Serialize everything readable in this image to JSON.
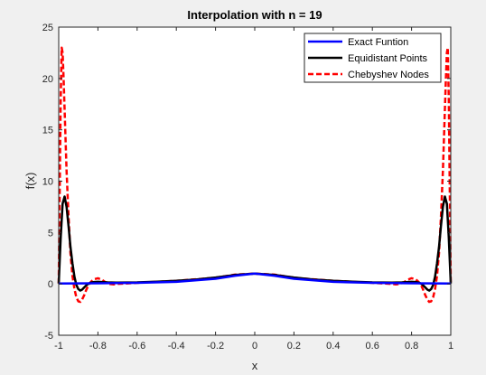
{
  "chart_data": {
    "type": "line",
    "title": "Interpolation with n = 19",
    "xlabel": "x",
    "ylabel": "f(x)",
    "xlim": [
      -1,
      1
    ],
    "ylim": [
      -5,
      25
    ],
    "xticks": [
      "-1",
      "-0.8",
      "-0.6",
      "-0.4",
      "-0.2",
      "0",
      "0.2",
      "0.4",
      "0.6",
      "0.8",
      "1"
    ],
    "yticks": [
      "-5",
      "0",
      "5",
      "10",
      "15",
      "20",
      "25"
    ],
    "grid": false,
    "legend_position": "top-right",
    "series": [
      {
        "name": "Exact Funtion",
        "color": "#0000ff",
        "style": "solid",
        "x": [
          -1,
          -0.8,
          -0.6,
          -0.4,
          -0.2,
          -0.1,
          0,
          0.1,
          0.2,
          0.4,
          0.6,
          0.8,
          1
        ],
        "y": [
          0.04,
          0.06,
          0.1,
          0.2,
          0.5,
          0.8,
          1.0,
          0.8,
          0.5,
          0.2,
          0.1,
          0.06,
          0.04
        ]
      },
      {
        "name": "Equidistant Points",
        "color": "#000000",
        "style": "solid",
        "x": [
          -1.0,
          -0.99,
          -0.98,
          -0.97,
          -0.96,
          -0.95,
          -0.94,
          -0.93,
          -0.92,
          -0.91,
          -0.9,
          -0.89,
          -0.88,
          -0.87,
          -0.86,
          -0.85,
          -0.84,
          -0.83,
          -0.82,
          -0.8,
          -0.75,
          -0.7,
          -0.6,
          -0.5,
          -0.4,
          -0.3,
          -0.2,
          -0.1,
          0,
          0.1,
          0.2,
          0.3,
          0.4,
          0.5,
          0.6,
          0.7,
          0.75,
          0.8,
          0.82,
          0.83,
          0.84,
          0.85,
          0.86,
          0.87,
          0.88,
          0.89,
          0.9,
          0.91,
          0.92,
          0.93,
          0.94,
          0.95,
          0.96,
          0.97,
          0.98,
          0.99,
          1.0
        ],
        "y": [
          0.04,
          4.5,
          7.8,
          8.5,
          7.5,
          5.6,
          3.6,
          2.0,
          0.7,
          -0.1,
          -0.5,
          -0.65,
          -0.55,
          -0.35,
          -0.15,
          0.0,
          0.1,
          0.15,
          0.18,
          0.2,
          0.15,
          0.12,
          0.15,
          0.22,
          0.3,
          0.42,
          0.62,
          0.87,
          1.0,
          0.87,
          0.62,
          0.42,
          0.3,
          0.22,
          0.15,
          0.12,
          0.15,
          0.2,
          0.18,
          0.15,
          0.1,
          0.0,
          -0.15,
          -0.35,
          -0.55,
          -0.65,
          -0.5,
          -0.1,
          0.7,
          2.0,
          3.6,
          5.6,
          7.5,
          8.5,
          7.8,
          4.5,
          0.04
        ]
      },
      {
        "name": "Chebyshev Nodes",
        "color": "#ff0000",
        "style": "dashed",
        "x": [
          -1.0,
          -0.995,
          -0.99,
          -0.985,
          -0.98,
          -0.975,
          -0.97,
          -0.965,
          -0.96,
          -0.95,
          -0.94,
          -0.93,
          -0.92,
          -0.91,
          -0.9,
          -0.89,
          -0.88,
          -0.87,
          -0.86,
          -0.85,
          -0.84,
          -0.83,
          -0.82,
          -0.8,
          -0.78,
          -0.76,
          -0.74,
          -0.72,
          -0.7,
          -0.6,
          -0.5,
          -0.4,
          -0.3,
          -0.2,
          -0.1,
          0,
          0.1,
          0.2,
          0.3,
          0.4,
          0.5,
          0.6,
          0.7,
          0.72,
          0.74,
          0.76,
          0.78,
          0.8,
          0.82,
          0.83,
          0.84,
          0.85,
          0.86,
          0.87,
          0.88,
          0.89,
          0.9,
          0.91,
          0.92,
          0.93,
          0.94,
          0.95,
          0.96,
          0.965,
          0.97,
          0.975,
          0.98,
          0.985,
          0.99,
          0.995,
          1.0
        ],
        "y": [
          0.04,
          9.0,
          18.0,
          23.0,
          22.5,
          20.0,
          17.0,
          14.0,
          11.0,
          6.5,
          3.0,
          0.8,
          -0.5,
          -1.3,
          -1.7,
          -1.75,
          -1.5,
          -1.1,
          -0.6,
          -0.2,
          0.1,
          0.3,
          0.45,
          0.55,
          0.4,
          0.15,
          0.0,
          -0.05,
          0.0,
          0.1,
          0.2,
          0.3,
          0.45,
          0.6,
          0.9,
          1.0,
          0.9,
          0.6,
          0.45,
          0.3,
          0.2,
          0.1,
          0.0,
          -0.05,
          0.0,
          0.15,
          0.4,
          0.55,
          0.45,
          0.3,
          0.1,
          -0.2,
          -0.6,
          -1.1,
          -1.5,
          -1.75,
          -1.7,
          -1.3,
          -0.5,
          0.8,
          3.0,
          6.5,
          11.0,
          14.0,
          17.0,
          20.0,
          22.5,
          23.0,
          18.0,
          9.0,
          0.04
        ]
      }
    ]
  }
}
